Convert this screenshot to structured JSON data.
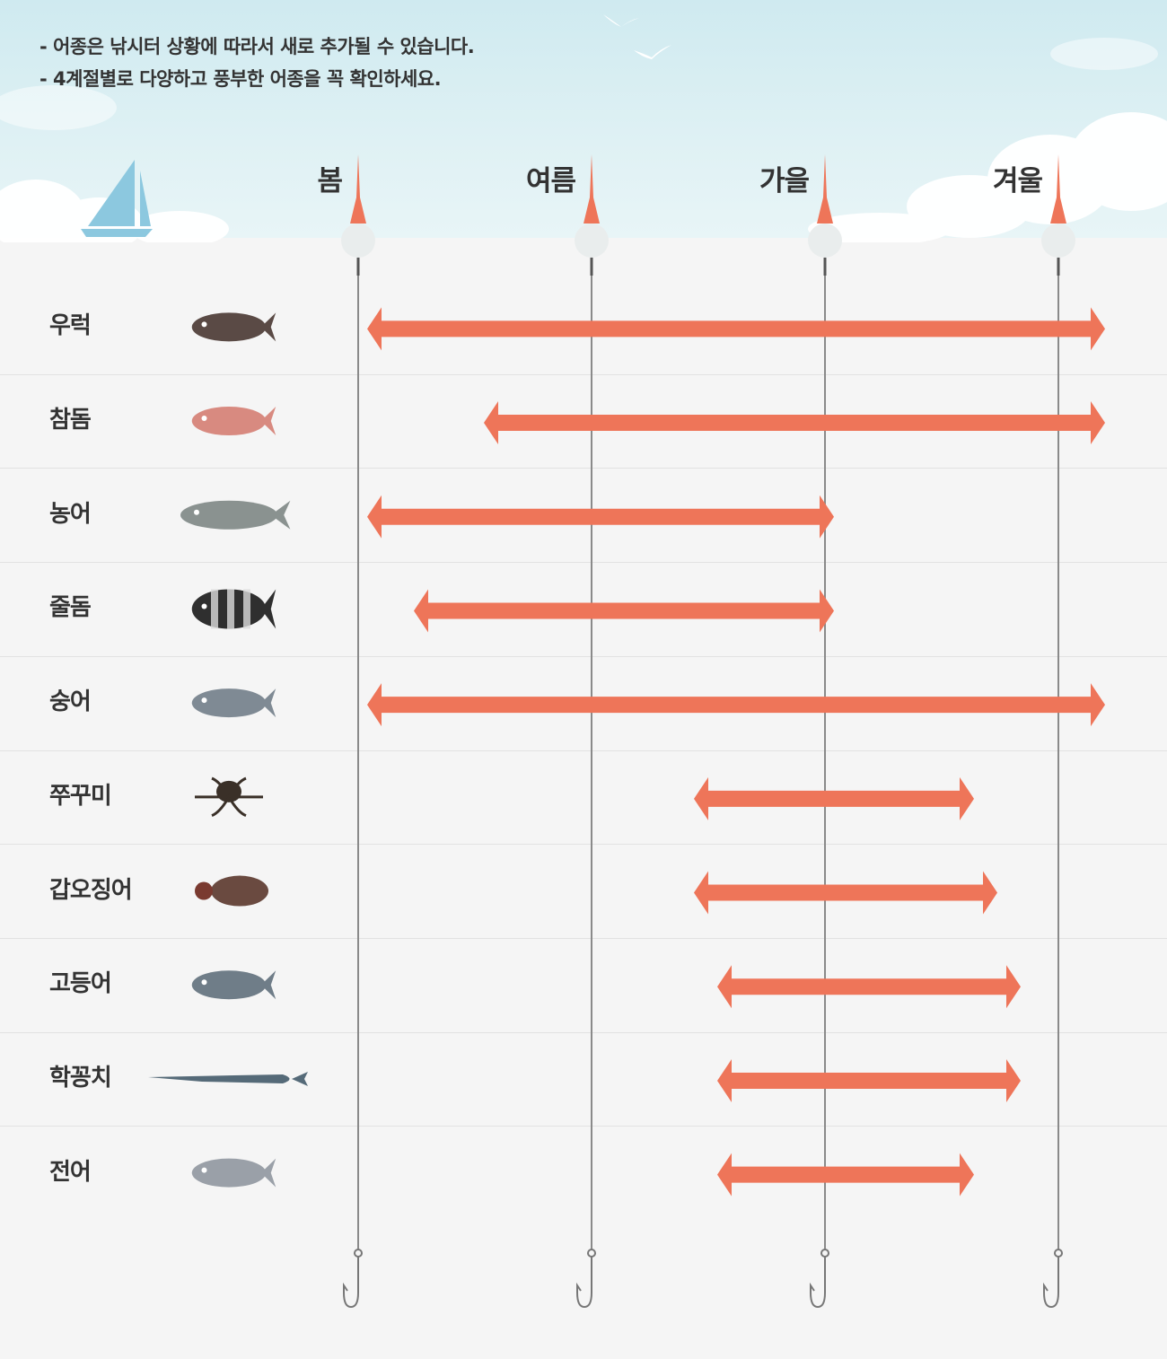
{
  "notes": [
    "- 어종은 낚시터 상황에 따라서 새로 추가될 수 있습니다.",
    "- 4계절별로 다양하고 풍부한 어종을 꼭 확인하세요."
  ],
  "colors": {
    "arrow": "#ee7559",
    "line": "#8a8a8a",
    "sky": "#d6eef2",
    "bg": "#f5f5f5"
  },
  "chart_data": {
    "type": "bar",
    "orientation": "horizontal-range",
    "seasons": [
      "봄",
      "여름",
      "가을",
      "겨울"
    ],
    "x_scale": "season index, 0=봄, 1=여름, 2=가을, 3=겨울",
    "categories": [
      "우럭",
      "참돔",
      "농어",
      "줄돔",
      "숭어",
      "쭈꾸미",
      "갑오징어",
      "고등어",
      "학꽁치",
      "전어"
    ],
    "icons": [
      "rockfish-icon",
      "red-seabream-icon",
      "seabass-icon",
      "striped-beakperch-icon",
      "mullet-icon",
      "webfoot-octopus-icon",
      "cuttlefish-icon",
      "mackerel-icon",
      "halfbeak-icon",
      "gizzard-shad-icon"
    ],
    "ranges": [
      [
        0.0,
        3.2
      ],
      [
        0.5,
        3.2
      ],
      [
        0.0,
        2.0
      ],
      [
        0.2,
        2.0
      ],
      [
        0.0,
        3.2
      ],
      [
        1.4,
        2.6
      ],
      [
        1.4,
        2.7
      ],
      [
        1.5,
        2.8
      ],
      [
        1.5,
        2.8
      ],
      [
        1.5,
        2.6
      ]
    ]
  }
}
